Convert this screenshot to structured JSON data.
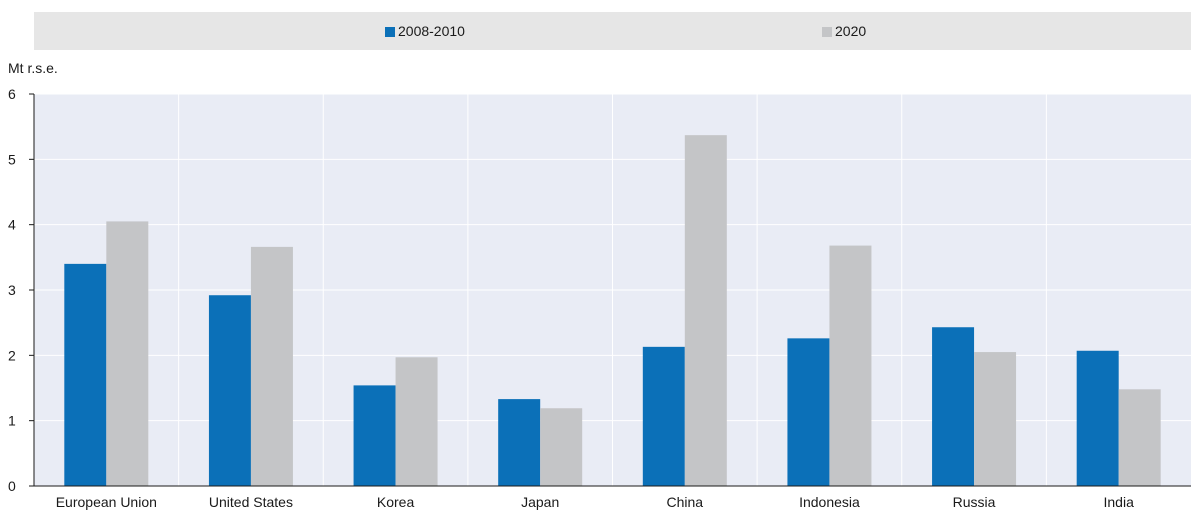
{
  "chart_data": {
    "type": "bar",
    "ylabel": "Mt r.s.e.",
    "ylim": [
      0,
      6
    ],
    "yticks": [
      0,
      1,
      2,
      3,
      4,
      5,
      6
    ],
    "grid": true,
    "legend_position": "top",
    "categories": [
      "European Union",
      "United States",
      "Korea",
      "Japan",
      "China",
      "Indonesia",
      "Russia",
      "India"
    ],
    "series": [
      {
        "name": "2008-2010",
        "color": "#0b70b8",
        "values": [
          3.4,
          2.92,
          1.54,
          1.33,
          2.13,
          2.26,
          2.43,
          2.07
        ]
      },
      {
        "name": "2020",
        "color": "#c4c5c7",
        "values": [
          4.05,
          3.66,
          1.97,
          1.19,
          5.37,
          3.68,
          2.05,
          1.48
        ]
      }
    ]
  },
  "colors": {
    "plot_background": "#e9ecf5",
    "grid": "#ffffff",
    "legend_background": "#e6e6e6"
  }
}
